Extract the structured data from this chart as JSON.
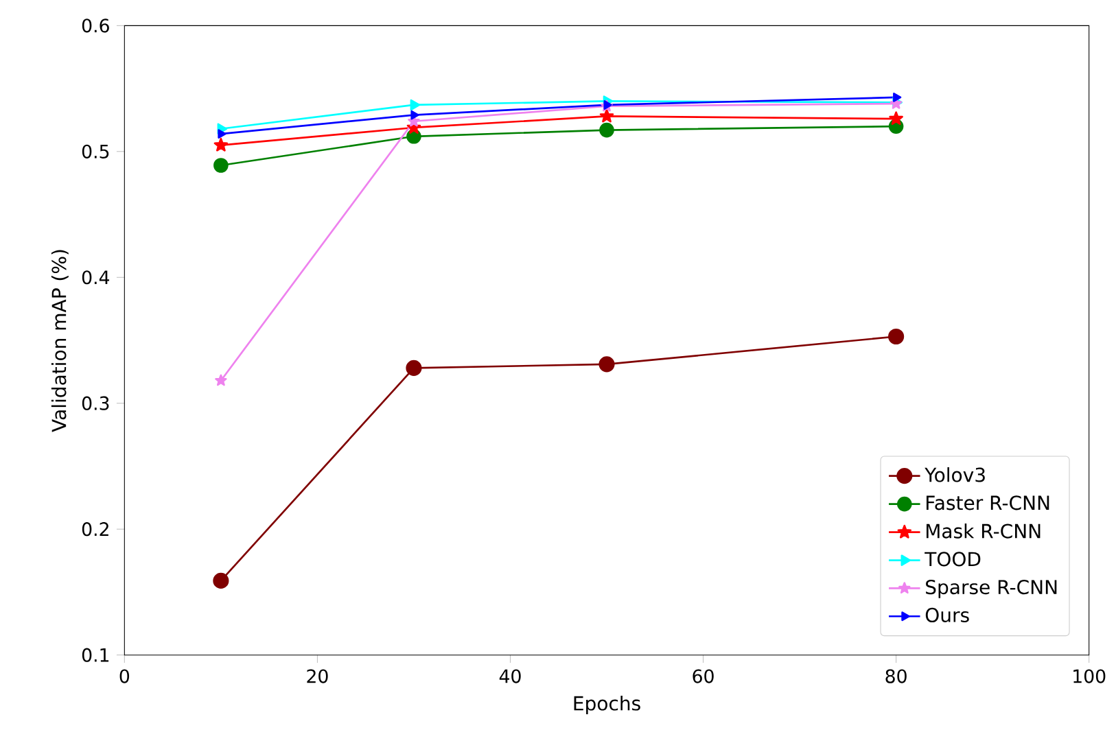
{
  "chart_data": {
    "type": "line",
    "xlabel": "Epochs",
    "ylabel": "Validation mAP (%)",
    "x": [
      10,
      30,
      50,
      80
    ],
    "xlim": [
      0,
      100
    ],
    "xticks": [
      0,
      20,
      40,
      60,
      80,
      100
    ],
    "ylim": [
      0.1,
      0.6
    ],
    "yticks": [
      0.1,
      0.2,
      0.3,
      0.4,
      0.5,
      0.6
    ],
    "grid": false,
    "legend": "bottom right",
    "series": [
      {
        "name": "Yolov3",
        "color": "#800000",
        "marker": "circle",
        "values": [
          0.159,
          0.328,
          0.331,
          0.353
        ]
      },
      {
        "name": "Faster R-CNN",
        "color": "#008000",
        "marker": "circle",
        "values": [
          0.489,
          0.512,
          0.517,
          0.52
        ]
      },
      {
        "name": "Mask R-CNN",
        "color": "#ff0000",
        "marker": "star",
        "values": [
          0.505,
          0.519,
          0.528,
          0.526
        ]
      },
      {
        "name": "TOOD",
        "color": "#00ffff",
        "marker": "triangle",
        "values": [
          0.518,
          0.537,
          0.54,
          0.539
        ]
      },
      {
        "name": "Sparse R-CNN",
        "color": "#ee82ee",
        "marker": "star",
        "values": [
          0.318,
          0.524,
          0.536,
          0.538
        ]
      },
      {
        "name": "Ours",
        "color": "#0000ff",
        "marker": "triangle",
        "values": [
          0.514,
          0.529,
          0.537,
          0.543
        ]
      }
    ]
  }
}
